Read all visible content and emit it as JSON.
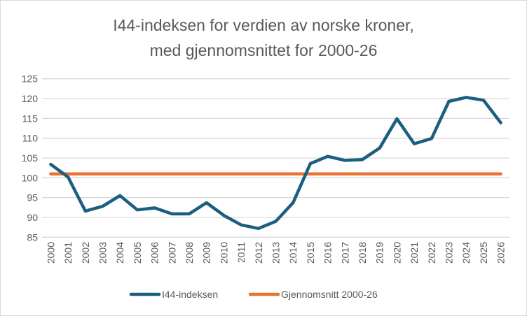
{
  "chart_data": {
    "type": "line",
    "title": [
      "I44-indeksen for verdien av norske kroner,",
      "med gjennomsnittet for 2000-26"
    ],
    "xlabel": "",
    "ylabel": "",
    "ylim": [
      85,
      125
    ],
    "yticks": [
      85,
      90,
      95,
      100,
      105,
      110,
      115,
      120,
      125
    ],
    "grid": true,
    "legend_position": "bottom",
    "categories": [
      "2000",
      "2001",
      "2002",
      "2003",
      "2004",
      "2005",
      "2006",
      "2007",
      "2008",
      "2009",
      "2010",
      "2011",
      "2012",
      "2013",
      "2014",
      "2015",
      "2016",
      "2017",
      "2018",
      "2019",
      "2020",
      "2021",
      "2022",
      "2023",
      "2024",
      "2025",
      "2026"
    ],
    "series": [
      {
        "name": "I44-indeksen",
        "color": "#1b5e80",
        "values": [
          103.4,
          100.2,
          91.6,
          92.8,
          95.5,
          91.9,
          92.4,
          90.9,
          90.9,
          93.7,
          90.5,
          88.1,
          87.2,
          89.0,
          93.7,
          103.6,
          105.4,
          104.4,
          104.6,
          107.5,
          114.9,
          108.6,
          109.9,
          119.3,
          120.3,
          119.6,
          113.9
        ]
      },
      {
        "name": "Gjennomsnitt 2000-26",
        "color": "#e97132",
        "values": [
          101.0,
          101.0,
          101.0,
          101.0,
          101.0,
          101.0,
          101.0,
          101.0,
          101.0,
          101.0,
          101.0,
          101.0,
          101.0,
          101.0,
          101.0,
          101.0,
          101.0,
          101.0,
          101.0,
          101.0,
          101.0,
          101.0,
          101.0,
          101.0,
          101.0,
          101.0,
          101.0
        ]
      }
    ]
  }
}
